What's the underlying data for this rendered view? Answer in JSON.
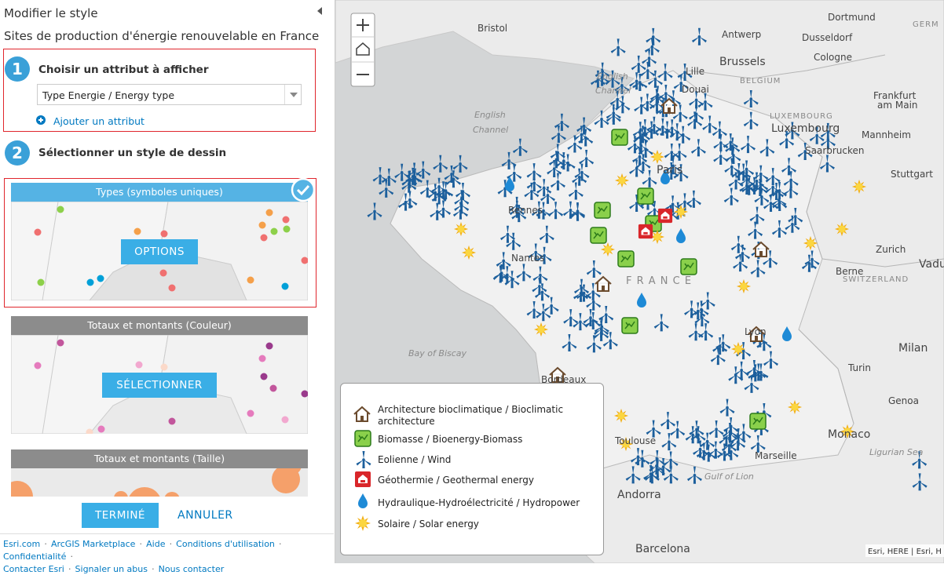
{
  "panel": {
    "title": "Modifier le style",
    "subtitle": "Sites de production d'énergie renouvelable en France",
    "step1": {
      "number": "1",
      "heading": "Choisir un attribut à afficher",
      "select": "Type Energie / Energy type",
      "add_attribute": "Ajouter un attribut"
    },
    "step2": {
      "number": "2",
      "heading": "Sélectionner un style de dessin"
    },
    "styles": [
      {
        "title": "Types (symboles uniques)",
        "button": "OPTIONS"
      },
      {
        "title": "Totaux et montants (Couleur)",
        "button": "SÉLECTIONNER"
      },
      {
        "title": "Totaux et montants (Taille)"
      }
    ],
    "actions": {
      "done": "TERMINÉ",
      "cancel": "ANNULER"
    },
    "footer_links": [
      "Esri.com",
      "ArcGIS Marketplace",
      "Aide",
      "Conditions d'utilisation",
      "Confidentialité",
      "Contacter Esri",
      "Signaler un abus",
      "Nous contacter"
    ]
  },
  "map": {
    "labels": [
      "Bristol",
      "Dortmund",
      "GERM",
      "Antwerp",
      "Dusseldorf",
      "Brussels",
      "Cologne",
      "BELGIUM",
      "Lille",
      "Douai",
      "English",
      "Channel",
      "English",
      "Channel",
      "LUXEMBOURG",
      "Frankfurt",
      "am Main",
      "Luxembourg",
      "Mannheim",
      "Saarbrucken",
      "Stuttgart",
      "Paris",
      "Rennes",
      "Nantes",
      "F R A N C E",
      "Zurich",
      "Vaduz",
      "Berne",
      "SWITZERLAND",
      "Bay of Biscay",
      "Lyon",
      "Milan",
      "Turin",
      "Bordeaux",
      "Genoa",
      "Toulouse",
      "Monaco",
      "Marseille",
      "Ligurian Sea",
      "Gulf of Lion",
      "Andorra",
      "Barcelona"
    ],
    "attribution": "Esri, HERE | Esri, H"
  },
  "legend": [
    "Architecture bioclimatique / Bioclimatic architecture",
    "Biomasse / Bioenergy-Biomass",
    "Eolienne / Wind",
    "Géothermie / Geothermal energy",
    "Hydraulique-Hydroélectricité / Hydropower",
    "Solaire / Solar energy"
  ]
}
